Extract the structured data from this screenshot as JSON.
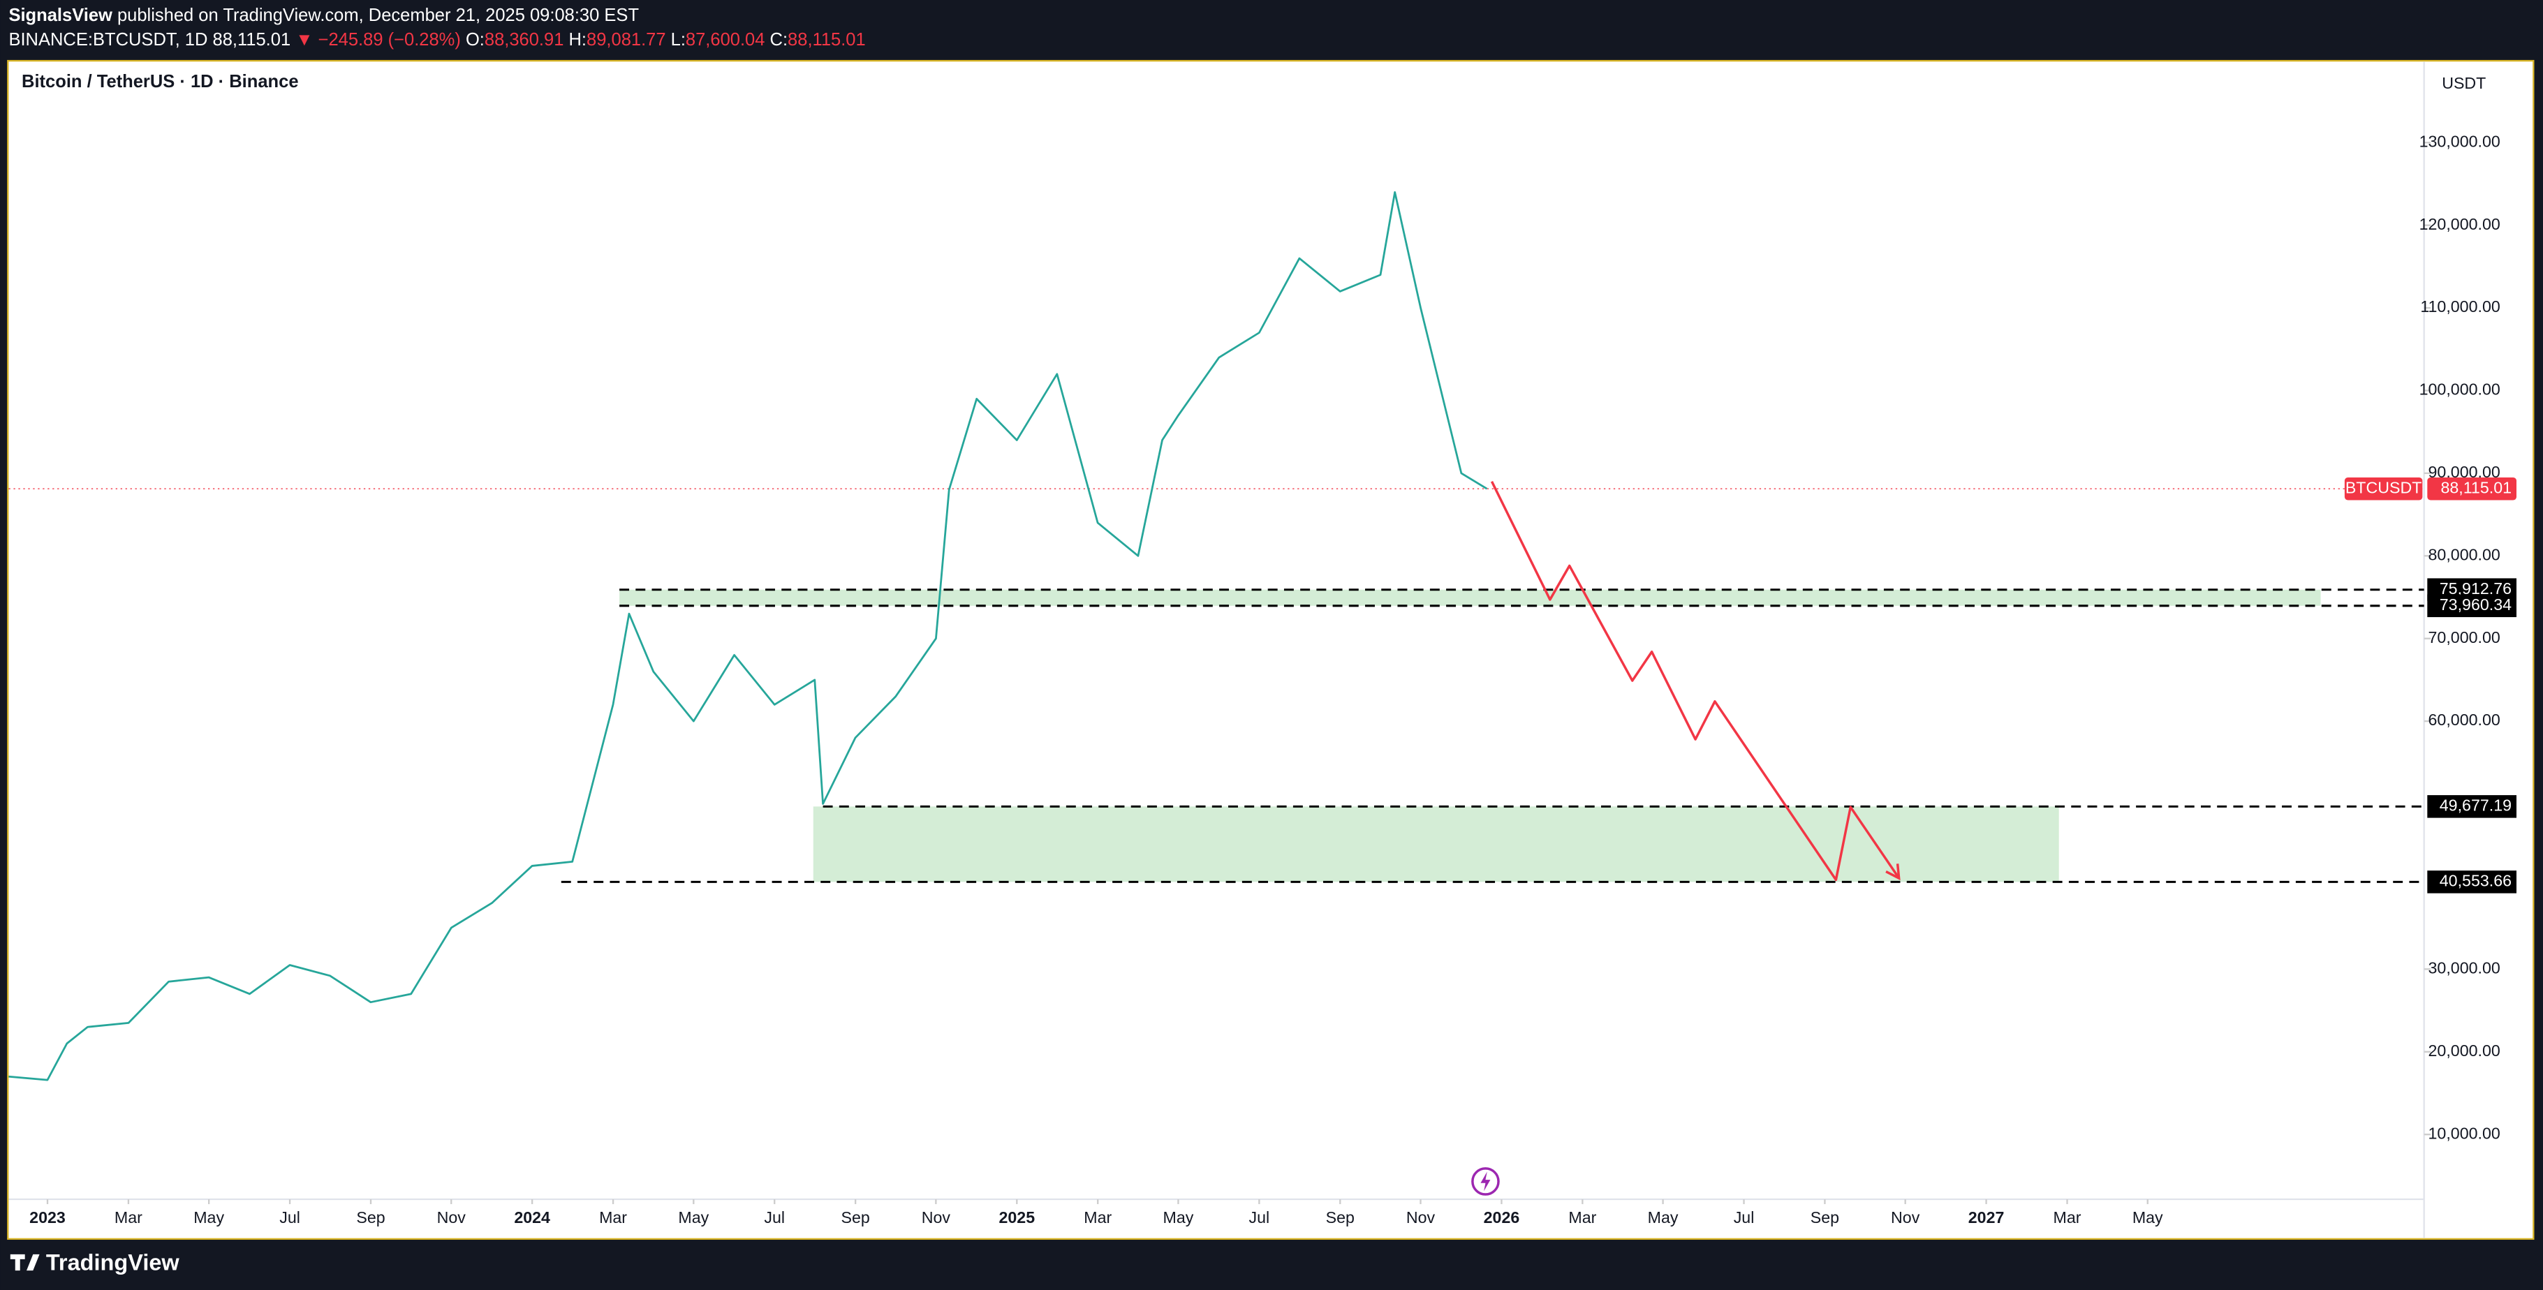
{
  "header": {
    "publisher": "SignalsView",
    "published": "published on TradingView.com, December 21, 2025 09:08:30 EST",
    "symbol": "BINANCE:BTCUSDT, 1D",
    "last": "88,115.01",
    "change": "▼ −245.89 (−0.28%)",
    "open_label": "O:",
    "open": "88,360.91",
    "high_label": "H:",
    "high": "89,081.77",
    "low_label": "L:",
    "low": "87,600.04",
    "close_label": "C:",
    "close": "88,115.01"
  },
  "chart_data": {
    "type": "line",
    "title": "Bitcoin / TetherUS · 1D · Binance",
    "currency": "USDT",
    "xlim": [
      2022.92,
      2027.9
    ],
    "ylim": [
      2160,
      139800
    ],
    "xticks": [
      {
        "value": 2023,
        "label": "2023"
      },
      {
        "value": 2023.167,
        "label": "Mar"
      },
      {
        "value": 2023.333,
        "label": "May"
      },
      {
        "value": 2023.5,
        "label": "Jul"
      },
      {
        "value": 2023.667,
        "label": "Sep"
      },
      {
        "value": 2023.833,
        "label": "Nov"
      },
      {
        "value": 2024,
        "label": "2024"
      },
      {
        "value": 2024.167,
        "label": "Mar"
      },
      {
        "value": 2024.333,
        "label": "May"
      },
      {
        "value": 2024.5,
        "label": "Jul"
      },
      {
        "value": 2024.667,
        "label": "Sep"
      },
      {
        "value": 2024.833,
        "label": "Nov"
      },
      {
        "value": 2025,
        "label": "2025"
      },
      {
        "value": 2025.167,
        "label": "Mar"
      },
      {
        "value": 2025.333,
        "label": "May"
      },
      {
        "value": 2025.5,
        "label": "Jul"
      },
      {
        "value": 2025.667,
        "label": "Sep"
      },
      {
        "value": 2025.833,
        "label": "Nov"
      },
      {
        "value": 2026,
        "label": "2026"
      },
      {
        "value": 2026.167,
        "label": "Mar"
      },
      {
        "value": 2026.333,
        "label": "May"
      },
      {
        "value": 2026.5,
        "label": "Jul"
      },
      {
        "value": 2026.667,
        "label": "Sep"
      },
      {
        "value": 2026.833,
        "label": "Nov"
      },
      {
        "value": 2027,
        "label": "2027"
      },
      {
        "value": 2027.167,
        "label": "Mar"
      },
      {
        "value": 2027.333,
        "label": "May"
      }
    ],
    "yticks": [
      {
        "value": 10000,
        "label": "10,000.00"
      },
      {
        "value": 20000,
        "label": "20,000.00"
      },
      {
        "value": 30000,
        "label": "30,000.00"
      },
      {
        "value": 60000,
        "label": "60,000.00"
      },
      {
        "value": 70000,
        "label": "70,000.00"
      },
      {
        "value": 80000,
        "label": "80,000.00"
      },
      {
        "value": 90000,
        "label": "90,000.00"
      },
      {
        "value": 100000,
        "label": "100,000.00"
      },
      {
        "value": 110000,
        "label": "110,000.00"
      },
      {
        "value": 120000,
        "label": "120,000.00"
      },
      {
        "value": 130000,
        "label": "130,000.00"
      }
    ],
    "series": [
      {
        "name": "BTCUSDT",
        "color": "#26a69a",
        "x": [
          2022.92,
          2023.0,
          2023.04,
          2023.083,
          2023.167,
          2023.25,
          2023.333,
          2023.417,
          2023.5,
          2023.583,
          2023.667,
          2023.75,
          2023.833,
          2023.917,
          2024.0,
          2024.083,
          2024.167,
          2024.2,
          2024.25,
          2024.333,
          2024.417,
          2024.5,
          2024.583,
          2024.6,
          2024.667,
          2024.75,
          2024.833,
          2024.86,
          2024.917,
          2025.0,
          2025.083,
          2025.167,
          2025.25,
          2025.3,
          2025.333,
          2025.417,
          2025.5,
          2025.583,
          2025.667,
          2025.75,
          2025.78,
          2025.833,
          2025.917,
          2025.97
        ],
        "values": [
          17000,
          16600,
          21000,
          23000,
          23500,
          28500,
          29000,
          27000,
          30500,
          29200,
          26000,
          27000,
          35000,
          38000,
          42500,
          43000,
          62000,
          73000,
          66000,
          60000,
          68000,
          62000,
          65000,
          50000,
          58000,
          63000,
          70000,
          88000,
          99000,
          94000,
          102000,
          84000,
          80000,
          94000,
          97000,
          104000,
          107000,
          116000,
          112000,
          114000,
          124000,
          110000,
          90000,
          88115.01
        ]
      },
      {
        "color": "#f23645",
        "x": [
          2025.98,
          2026.1,
          2026.14,
          2026.27,
          2026.31,
          2026.4,
          2026.44,
          2026.69,
          2026.72,
          2026.82
        ],
        "values": [
          89000,
          74700,
          78800,
          64900,
          68400,
          57800,
          62400,
          40800,
          49600,
          41000
        ]
      }
    ],
    "levels": {
      "values": [
        75912.76,
        73960.34,
        49677.19,
        40553.66
      ],
      "value_labels": [
        "75,912.76",
        "73,960.34",
        "49,677.19",
        "40,553.66"
      ],
      "start": [
        2024.18,
        2024.18,
        2024.6,
        2024.06
      ]
    },
    "zones": [
      {
        "x": [
          2024.18,
          2027.69
        ]
      },
      {
        "x": [
          2024.58,
          2027.15
        ]
      }
    ],
    "last": {
      "name": "BTCUSDT",
      "value": 88115.01,
      "label": "88,115.01",
      "color": "#f23645"
    }
  },
  "footer": {
    "brand": "TradingView"
  }
}
